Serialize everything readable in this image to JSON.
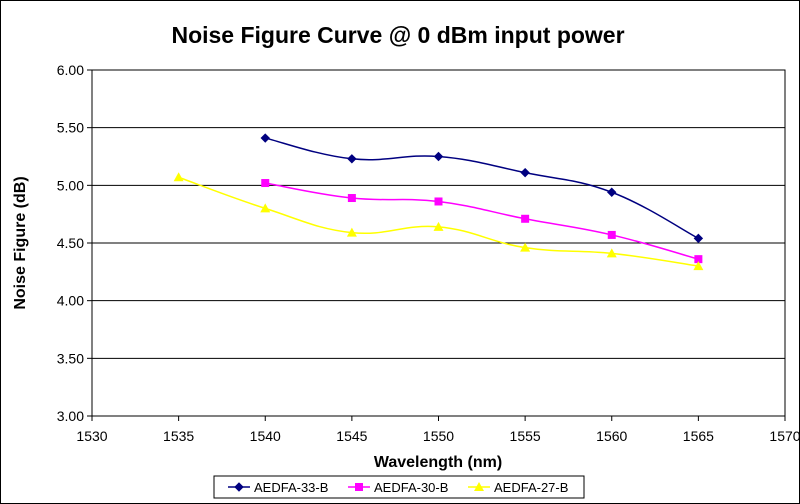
{
  "chart_data": {
    "type": "line",
    "title": "Noise Figure Curve @ 0 dBm input power",
    "xlabel": "Wavelength (nm)",
    "ylabel": "Noise Figure (dB)",
    "xlim": [
      1530,
      1570
    ],
    "ylim": [
      3.0,
      6.0
    ],
    "x_ticks": [
      1530,
      1535,
      1540,
      1545,
      1550,
      1555,
      1560,
      1565,
      1570
    ],
    "y_ticks": [
      "3.00",
      "3.50",
      "4.00",
      "4.50",
      "5.00",
      "5.50",
      "6.00"
    ],
    "grid": "horizontal",
    "legend_position": "bottom",
    "series": [
      {
        "name": "AEDFA-33-B",
        "color": "#000080",
        "marker": "diamond",
        "x": [
          1540,
          1545,
          1550,
          1555,
          1560,
          1565
        ],
        "y": [
          5.41,
          5.23,
          5.25,
          5.11,
          4.94,
          4.54
        ]
      },
      {
        "name": "AEDFA-30-B",
        "color": "#FF00FF",
        "marker": "square",
        "x": [
          1540,
          1545,
          1550,
          1555,
          1560,
          1565
        ],
        "y": [
          5.02,
          4.89,
          4.86,
          4.71,
          4.57,
          4.36
        ]
      },
      {
        "name": "AEDFA-27-B",
        "color": "#FFFF00",
        "marker": "triangle",
        "x": [
          1535,
          1540,
          1545,
          1550,
          1555,
          1560,
          1565
        ],
        "y": [
          5.07,
          4.8,
          4.59,
          4.64,
          4.46,
          4.41,
          4.3
        ]
      }
    ]
  }
}
